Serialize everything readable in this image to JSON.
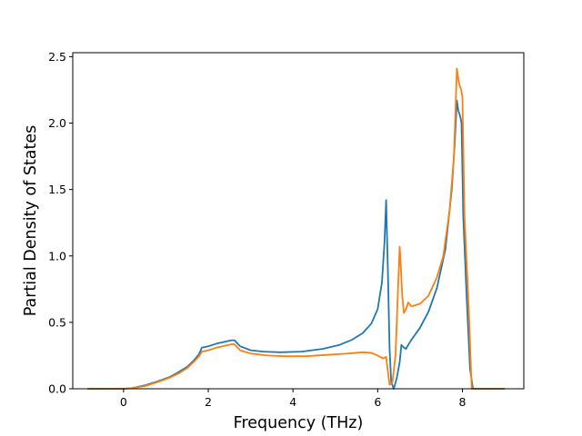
{
  "chart_data": {
    "type": "line",
    "title": "",
    "xlabel": "Frequency (THz)",
    "ylabel": "Partial Density of States",
    "xlim": [
      -1.2,
      9.45
    ],
    "ylim": [
      0,
      2.53
    ],
    "xticks": [
      0,
      2,
      4,
      6,
      8
    ],
    "yticks": [
      0.0,
      0.5,
      1.0,
      1.5,
      2.0,
      2.5
    ],
    "xtick_labels": [
      "0",
      "2",
      "4",
      "6",
      "8"
    ],
    "ytick_labels": [
      "0.0",
      "0.5",
      "1.0",
      "1.5",
      "2.0",
      "2.5"
    ],
    "grid": false,
    "legend": "none",
    "series": [
      {
        "color": "#1f77b4",
        "x": [
          -0.85,
          0.0,
          0.2,
          0.5,
          0.8,
          1.1,
          1.3,
          1.5,
          1.65,
          1.78,
          1.85,
          2.0,
          2.2,
          2.4,
          2.55,
          2.62,
          2.75,
          3.0,
          3.3,
          3.7,
          4.2,
          4.7,
          5.1,
          5.4,
          5.65,
          5.85,
          6.0,
          6.1,
          6.16,
          6.2,
          6.24,
          6.28,
          6.32,
          6.38,
          6.45,
          6.52,
          6.56,
          6.62,
          6.67,
          6.72,
          6.8,
          7.0,
          7.2,
          7.4,
          7.6,
          7.75,
          7.82,
          7.87,
          7.9,
          7.95,
          7.98,
          8.02,
          8.1,
          8.18,
          8.25,
          9.0
        ],
        "y": [
          0.0,
          0.0,
          0.005,
          0.025,
          0.055,
          0.09,
          0.125,
          0.165,
          0.21,
          0.26,
          0.31,
          0.32,
          0.34,
          0.355,
          0.365,
          0.365,
          0.32,
          0.29,
          0.28,
          0.275,
          0.28,
          0.3,
          0.33,
          0.37,
          0.42,
          0.49,
          0.6,
          0.8,
          1.1,
          1.42,
          0.9,
          0.3,
          0.05,
          0.0,
          0.08,
          0.2,
          0.33,
          0.31,
          0.3,
          0.33,
          0.37,
          0.46,
          0.58,
          0.76,
          1.05,
          1.5,
          1.85,
          2.17,
          2.1,
          2.05,
          2.0,
          1.3,
          0.7,
          0.15,
          0.0,
          0.0
        ]
      },
      {
        "color": "#ff7f0e",
        "x": [
          -0.85,
          0.0,
          0.2,
          0.5,
          0.8,
          1.1,
          1.3,
          1.5,
          1.65,
          1.78,
          1.85,
          2.0,
          2.2,
          2.4,
          2.55,
          2.62,
          2.75,
          3.0,
          3.4,
          3.8,
          4.3,
          4.8,
          5.3,
          5.65,
          5.85,
          6.0,
          6.12,
          6.2,
          6.28,
          6.35,
          6.42,
          6.48,
          6.52,
          6.55,
          6.58,
          6.62,
          6.67,
          6.72,
          6.8,
          7.0,
          7.2,
          7.4,
          7.55,
          7.7,
          7.8,
          7.87,
          7.92,
          7.97,
          8.0,
          8.05,
          8.15,
          8.22,
          9.0
        ],
        "y": [
          0.0,
          0.0,
          0.005,
          0.02,
          0.05,
          0.085,
          0.115,
          0.155,
          0.2,
          0.245,
          0.28,
          0.29,
          0.31,
          0.325,
          0.335,
          0.335,
          0.29,
          0.265,
          0.25,
          0.245,
          0.245,
          0.255,
          0.265,
          0.275,
          0.27,
          0.25,
          0.23,
          0.24,
          0.03,
          0.05,
          0.25,
          0.75,
          1.07,
          0.9,
          0.7,
          0.57,
          0.6,
          0.65,
          0.62,
          0.64,
          0.7,
          0.84,
          1.0,
          1.35,
          1.75,
          2.41,
          2.3,
          2.25,
          2.2,
          1.3,
          0.6,
          0.0,
          0.0
        ]
      }
    ]
  }
}
